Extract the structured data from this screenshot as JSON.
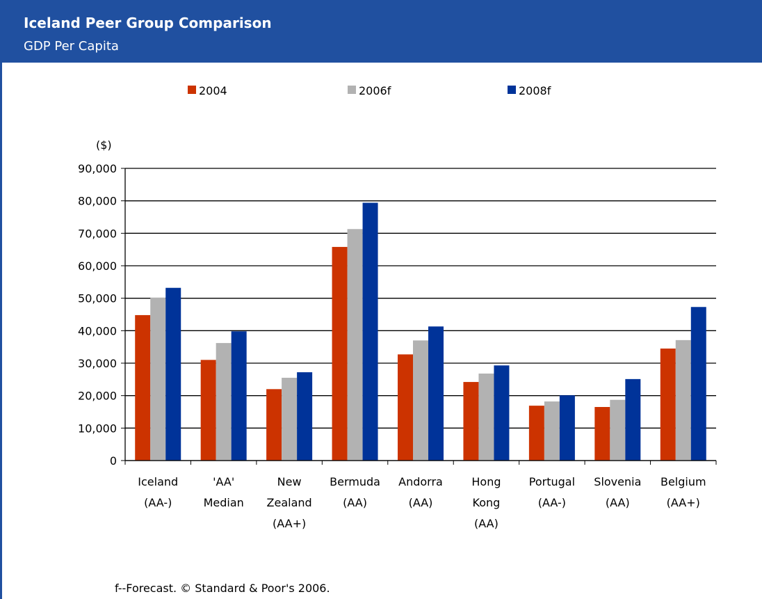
{
  "chart_data": {
    "type": "bar",
    "title": "Iceland Peer Group Comparison",
    "subtitle": "GDP Per Capita",
    "y_label": "($)",
    "footnote": "f--Forecast. © Standard & Poor's 2006.",
    "categories": [
      "Iceland (AA-)",
      "'AA' Median",
      "New Zealand (AA+)",
      "Bermuda (AA)",
      "Andorra (AA)",
      "Hong Kong (AA)",
      "Portugal (AA-)",
      "Slovenia (AA)",
      "Belgium (AA+)"
    ],
    "series": [
      {
        "name": "2004",
        "color": "#cc3300",
        "values": [
          44800,
          31000,
          22000,
          65800,
          32700,
          24200,
          16900,
          16500,
          34500
        ]
      },
      {
        "name": "2006f",
        "color": "#b2b2b2",
        "values": [
          50200,
          36200,
          25500,
          71300,
          37000,
          26800,
          18200,
          18700,
          37100
        ]
      },
      {
        "name": "2008f",
        "color": "#003399",
        "values": [
          53200,
          39800,
          27200,
          79400,
          41300,
          29300,
          20100,
          25100,
          47300
        ]
      }
    ],
    "ylim": [
      0,
      90000
    ],
    "yticks": [
      0,
      {
        "value": 10000,
        "label": "10,000"
      },
      {
        "value": 20000,
        "label": "20,000"
      },
      {
        "value": 30000,
        "label": "30,000"
      },
      {
        "value": 40000,
        "label": "40,000"
      },
      {
        "value": 50000,
        "label": "50,000"
      },
      {
        "value": 60000,
        "label": "60,000"
      },
      {
        "value": 70000,
        "label": "70,000"
      },
      {
        "value": 80000,
        "label": "80,000"
      },
      {
        "value": 90000,
        "label": "90,000"
      }
    ],
    "grid": true,
    "legend": "top"
  }
}
